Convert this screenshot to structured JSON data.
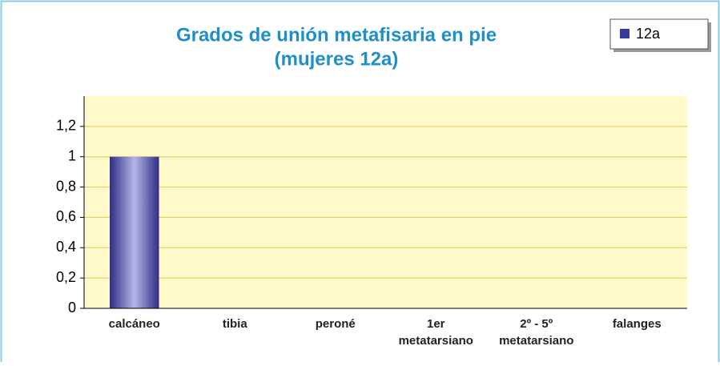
{
  "chart_data": {
    "type": "bar",
    "title": [
      "Grados de unión metafisaria en pie",
      "(mujeres 12a)"
    ],
    "categories": [
      [
        "calcáneo"
      ],
      [
        "tibia"
      ],
      [
        "peroné"
      ],
      [
        "1er",
        "metatarsiano"
      ],
      [
        "2º - 5º",
        "metatarsiano"
      ],
      [
        "falanges"
      ]
    ],
    "series": [
      {
        "name": "12a",
        "color": "#3a3a9e",
        "values": [
          1,
          0,
          0,
          0,
          0,
          0
        ]
      }
    ],
    "ylim": [
      0,
      1.4
    ],
    "yticks": [
      0,
      {
        "value": 0.2,
        "label": "0,2"
      },
      {
        "value": 0.4,
        "label": "0,4"
      },
      {
        "value": 0.6,
        "label": "0,6"
      },
      {
        "value": 0.8,
        "label": "0,8"
      },
      1,
      {
        "value": 1.2,
        "label": "1,2"
      }
    ],
    "grid": true,
    "legend": "top-right"
  }
}
